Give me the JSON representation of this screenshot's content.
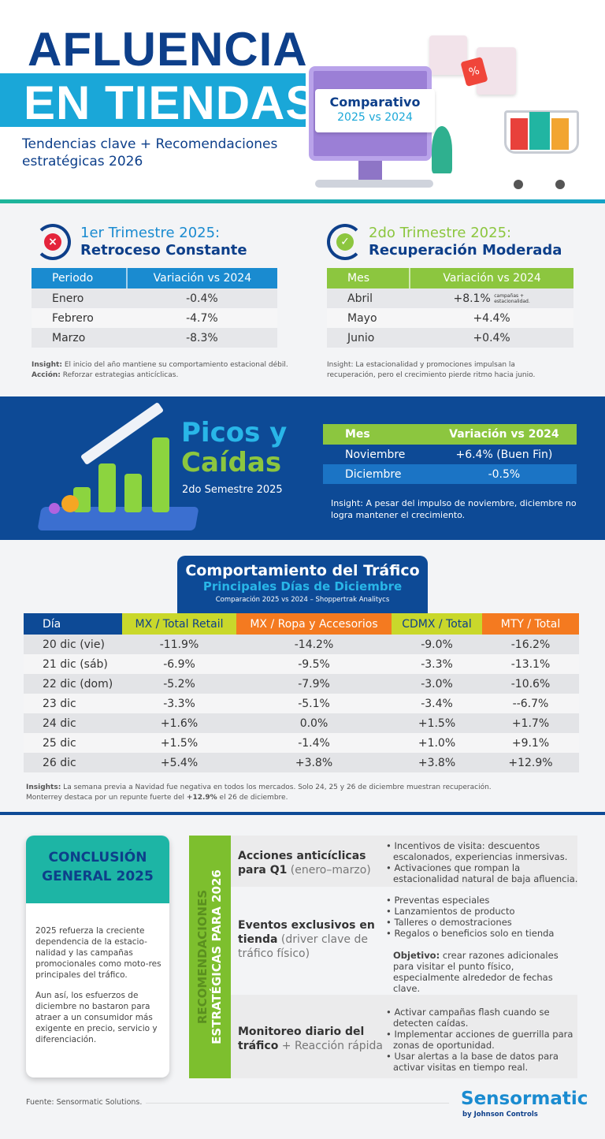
{
  "header": {
    "title_line1": "AFLUENCIA",
    "title_line2": "EN TIENDAS",
    "subtitle": "Tendencias clave + Recomendaciones estratégicas 2026",
    "comparison_title": "Comparativo",
    "comparison_years": "2025 vs 2024"
  },
  "q1": {
    "title_a": "1er Trimestre 2025:",
    "title_b": "Retroceso Constante",
    "icon": "x-cycle-icon",
    "headers": [
      "Periodo",
      "Variación vs 2024"
    ],
    "rows": [
      [
        "Enero",
        "-0.4%"
      ],
      [
        "Febrero",
        "-4.7%"
      ],
      [
        "Marzo",
        "-8.3%"
      ]
    ],
    "insight_label": "Insight:",
    "insight": " El inicio del año mantiene su comportamiento estacional débil.",
    "action_label": "Acción:",
    "action": " Reforzar estrategias anticíclicas."
  },
  "q2": {
    "title_a": "2do Trimestre 2025:",
    "title_b": "Recuperación Moderada",
    "icon": "check-cycle-icon",
    "headers": [
      "Mes",
      "Variación vs 2024"
    ],
    "rows": [
      [
        "Abril",
        "+8.1%"
      ],
      [
        "Mayo",
        "+4.4%"
      ],
      [
        "Junio",
        "+0.4%"
      ]
    ],
    "note_line1": "campañas +",
    "note_line2": "estacionalidad.",
    "insight": "Insight: La estacionalidad y promociones impulsan la recuperación, pero el crecimiento pierde ritmo hacia junio."
  },
  "peaks": {
    "title_line1": "Picos y",
    "title_line2": "Caídas",
    "period": "2do Semestre 2025",
    "headers": [
      "Mes",
      "Variación vs 2024"
    ],
    "rows": [
      [
        "Noviembre",
        "+6.4% (Buen Fin)"
      ],
      [
        "Diciembre",
        "-0.5%"
      ]
    ],
    "insight": "Insight: A pesar del impulso de noviembre, diciembre no logra mantener el crecimiento."
  },
  "traffic": {
    "title": "Comportamiento del Tráfico",
    "subtitle": "Principales Días de Diciembre",
    "source": "Comparación 2025 vs 2024 – Shoppertrak Analitycs",
    "headers": [
      "Día",
      "MX / Total Retail",
      "MX / Ropa y Accesorios",
      "CDMX / Total",
      "MTY / Total"
    ],
    "rows": [
      [
        "20 dic (vie)",
        "-11.9%",
        "-14.2%",
        "-9.0%",
        "-16.2%"
      ],
      [
        "21 dic (sáb)",
        "-6.9%",
        "-9.5%",
        "-3.3%",
        "-13.1%"
      ],
      [
        "22 dic (dom)",
        "-5.2%",
        "-7.9%",
        "-3.0%",
        "-10.6%"
      ],
      [
        "23 dic",
        "-3.3%",
        "-5.1%",
        "-3.4%",
        "--6.7%"
      ],
      [
        "24 dic",
        "+1.6%",
        "0.0%",
        "+1.5%",
        "+1.7%"
      ],
      [
        "25 dic",
        "+1.5%",
        "-1.4%",
        "+1.0%",
        "+9.1%"
      ],
      [
        "26 dic",
        "+5.4%",
        "+3.8%",
        "+3.8%",
        "+12.9%"
      ]
    ],
    "insight_label": "Insights:",
    "insight_1": " La semana previa a Navidad fue negativa en todos los mercados. Solo 24, 25 y 26 de diciembre muestran recuperación.",
    "insight_2a": "Monterrey destaca por un repunte fuerte del ",
    "insight_2b": "+12.9%",
    "insight_2c": " el 26 de diciembre."
  },
  "conclusion": {
    "title_line1": "CONCLUSIÓN",
    "title_line2": "GENERAL 2025",
    "p1": "2025 refuerza la creciente dependencia de la estacio-nalidad y las campañas promocionales como moto-res principales del tráfico.",
    "p2": "Aun así, los esfuerzos de diciembre no bastaron para atraer a un consumidor más exigente en precio, servicio y diferenciación."
  },
  "recommendations": {
    "band_line1": "RECOMENDACIONES",
    "band_line2": "ESTRATÉGICAS PARA 2026",
    "items": [
      {
        "label_bold": "Acciones anticíclicas para Q1",
        "label_light": " (enero–marzo)",
        "bullets": [
          "Incentivos de visita: descuentos escalonados, experiencias inmersivas.",
          "Activaciones que rompan la estacionalidad natural de baja afluencia."
        ]
      },
      {
        "label_bold": "Eventos exclusivos en tienda",
        "label_light": " (driver clave de tráfico físico)",
        "bullets": [
          "Preventas especiales",
          "Lanzamientos de producto",
          "Talleres o demostraciones",
          "Regalos o beneficios solo en tienda"
        ],
        "objective_label": "Objetivo:",
        "objective": " crear razones adicionales para visitar el punto físico, especialmente alrededor de fechas clave."
      },
      {
        "label_bold": "Monitoreo diario del tráfico",
        "label_light": " + Reacción rápida",
        "bullets": [
          "Activar campañas flash cuando se detecten caídas.",
          "Implementar acciones de guerrilla para zonas de oportunidad.",
          "Usar alertas a la base de datos para activar visitas en tiempo real."
        ]
      }
    ]
  },
  "footer": {
    "source": "Fuente: Sensormatic Solutions.",
    "logo": "Sensormatic",
    "logo_sub": "by Johnson Controls"
  },
  "colors": {
    "navy": "#0d3f8a",
    "cyan": "#1aa7d8",
    "green": "#8cc63f",
    "orange": "#f47a20",
    "lime": "#c9d82b",
    "teal": "#1db5a5"
  }
}
